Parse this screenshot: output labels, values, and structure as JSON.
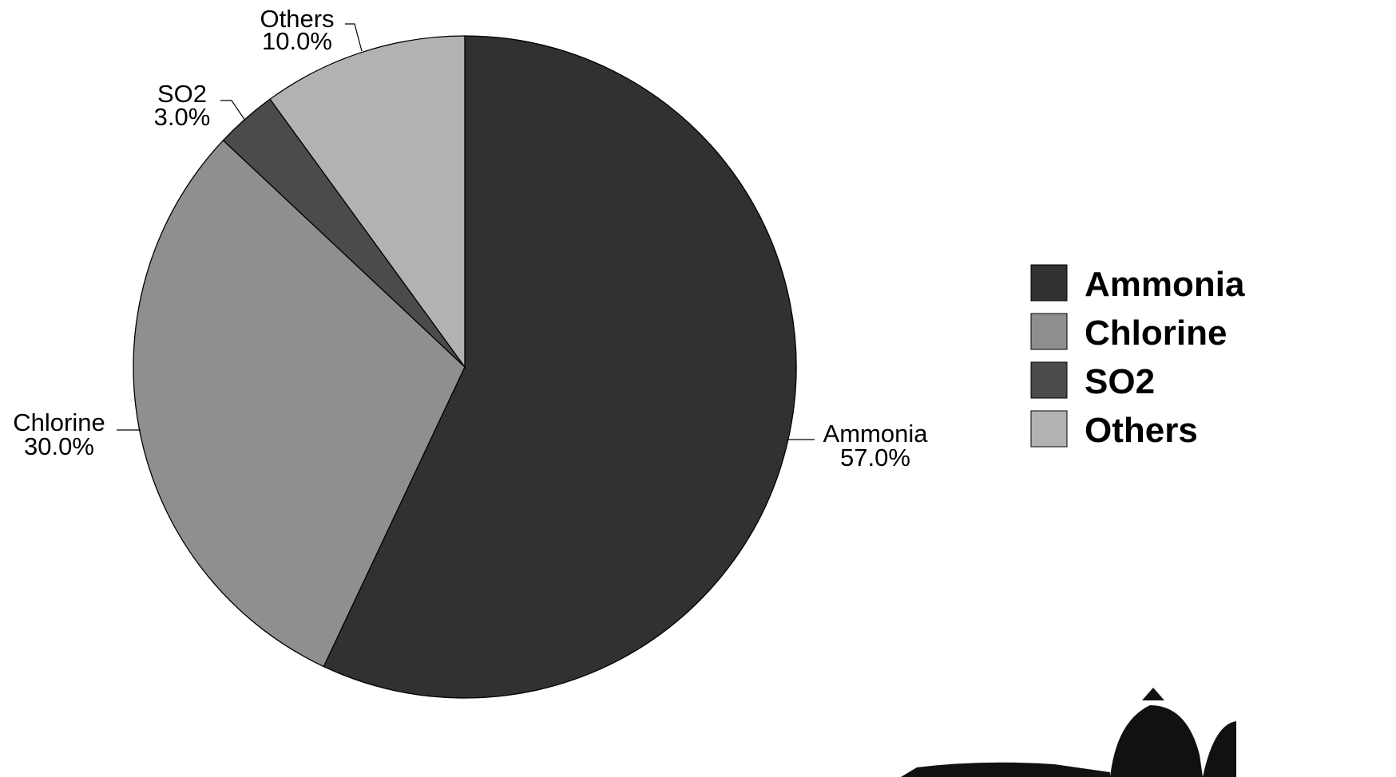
{
  "chart_data": {
    "type": "pie",
    "title": "",
    "legend_position": "right",
    "slices": [
      {
        "label": "Ammonia",
        "value": 57.0,
        "percent_label": "57.0%",
        "color": "#313131"
      },
      {
        "label": "Chlorine",
        "value": 30.0,
        "percent_label": "30.0%",
        "color": "#8f8f8f"
      },
      {
        "label": "SO2",
        "value": 3.0,
        "percent_label": "3.0%",
        "color": "#4b4b4b"
      },
      {
        "label": "Others",
        "value": 10.0,
        "percent_label": "10.0%",
        "color": "#b2b2b2"
      }
    ]
  }
}
